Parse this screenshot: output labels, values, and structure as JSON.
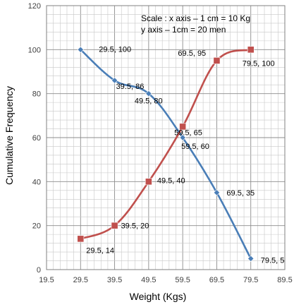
{
  "chart_data": {
    "type": "line",
    "xlabel": "Weight (Kgs)",
    "ylabel": "Cumulative Frequency",
    "xlim": [
      19.5,
      89.5
    ],
    "ylim": [
      0,
      120
    ],
    "x_ticks": [
      "19.5",
      "29.5",
      "39.5",
      "49.5",
      "59.5",
      "69.5",
      "79.5",
      "89.5"
    ],
    "y_ticks": [
      "0",
      "20",
      "40",
      "60",
      "80",
      "100",
      "120"
    ],
    "grid": "on",
    "scale_note": [
      "Scale : x axis – 1 cm = 10 Kg",
      "y axis – 1cm = 20 men"
    ],
    "series": [
      {
        "marker": "diamond",
        "color": "#4a7eb7",
        "points": [
          {
            "x": 29.5,
            "y": 100,
            "label": "29.5, 100"
          },
          {
            "x": 39.5,
            "y": 86,
            "label": "39.5, 86"
          },
          {
            "x": 49.5,
            "y": 80,
            "label": "49.5, 80"
          },
          {
            "x": 59.5,
            "y": 60,
            "label": "59.5, 60"
          },
          {
            "x": 69.5,
            "y": 35,
            "label": "69.5, 35"
          },
          {
            "x": 79.5,
            "y": 5,
            "label": "79.5, 5"
          }
        ]
      },
      {
        "marker": "square",
        "color": "#c0504d",
        "points": [
          {
            "x": 29.5,
            "y": 14,
            "label": "29.5, 14"
          },
          {
            "x": 39.5,
            "y": 20,
            "label": "39.5, 20"
          },
          {
            "x": 49.5,
            "y": 40,
            "label": "49.5, 40"
          },
          {
            "x": 59.5,
            "y": 65,
            "label": "59.5, 65"
          },
          {
            "x": 69.5,
            "y": 95,
            "label": "69.5, 95"
          },
          {
            "x": 79.5,
            "y": 100,
            "label": "79.5, 100"
          }
        ]
      }
    ]
  }
}
